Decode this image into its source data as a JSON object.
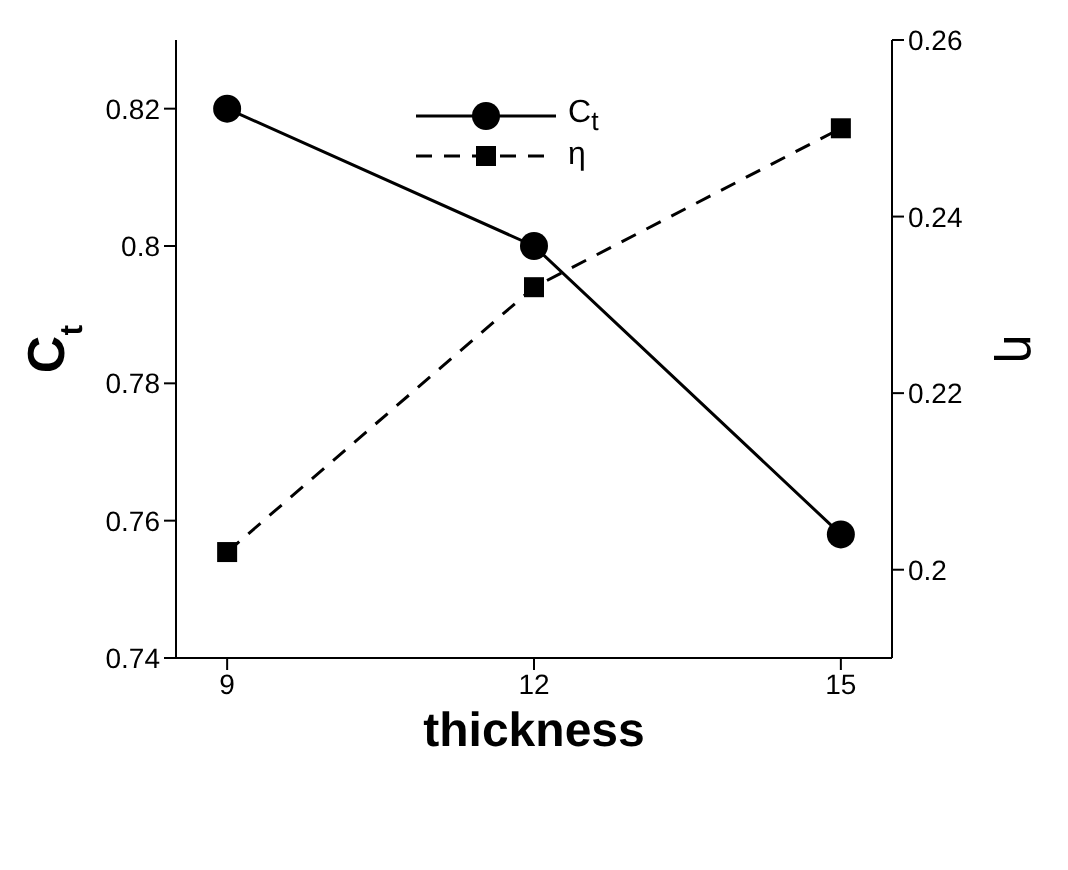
{
  "chart_data": {
    "type": "line",
    "xlabel": "thickness",
    "ylabel": "C$_{t}$",
    "y2label": "η",
    "x": [
      9,
      12,
      15
    ],
    "xlim": [
      8.5,
      15.5
    ],
    "xticks": [
      9,
      12,
      15
    ],
    "ylim": [
      0.74,
      0.83
    ],
    "yticks": [
      0.74,
      0.76,
      0.78,
      0.8,
      0.82
    ],
    "y2lim": [
      0.19,
      0.26
    ],
    "y2ticks": [
      0.2,
      0.22,
      0.24,
      0.26
    ],
    "legend": "top",
    "grid": false,
    "series": [
      {
        "name": "C$_{t}$",
        "color": "#000000",
        "values": [
          0.82,
          0.8,
          0.758
        ],
        "marker": "circle",
        "line_style": "solid"
      },
      {
        "name": "η",
        "color": "#000000",
        "values": [
          0.202,
          0.232,
          0.25
        ],
        "marker": "square",
        "line_style": "dashed",
        "axis": "y2"
      }
    ]
  }
}
